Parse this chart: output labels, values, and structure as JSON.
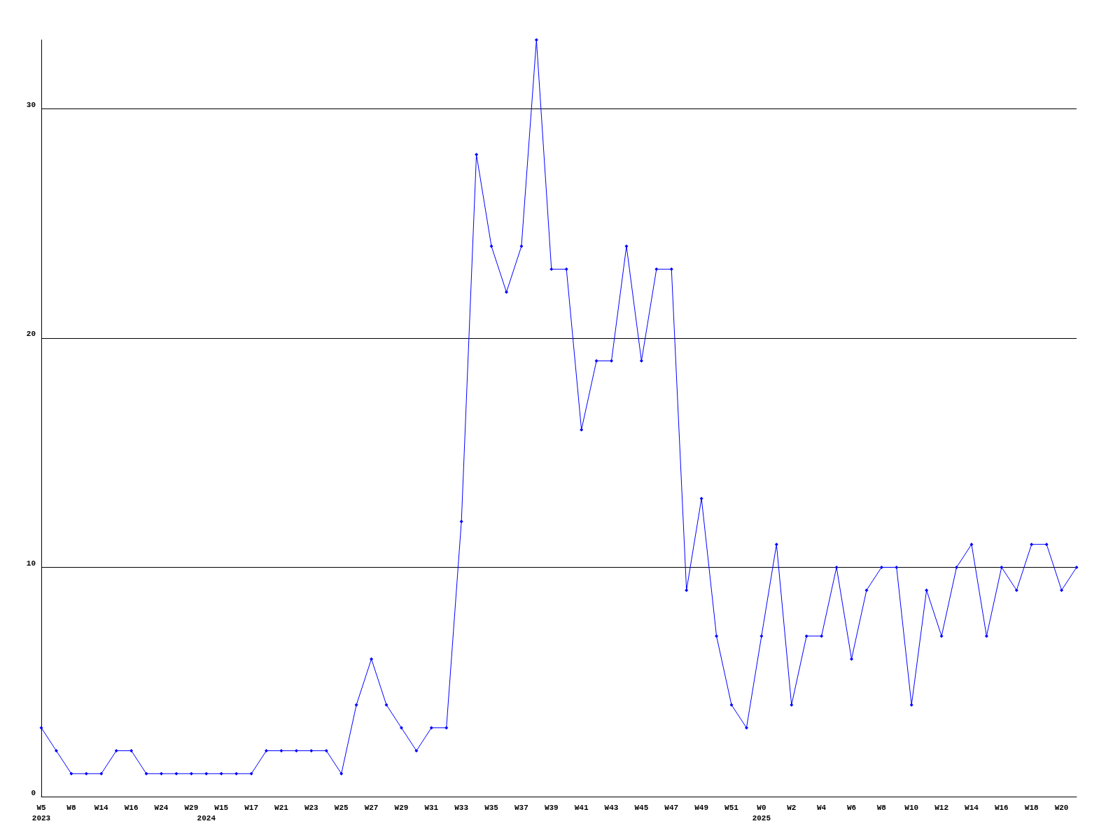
{
  "chart_data": {
    "type": "line",
    "categories": [
      "W5\n2023",
      null,
      "W8",
      null,
      "W14",
      null,
      "W16",
      null,
      "W24",
      null,
      "W29",
      "\n2024",
      "W15",
      null,
      "W17",
      null,
      "W21",
      null,
      "W23",
      null,
      "W25",
      null,
      "W27",
      null,
      "W29",
      null,
      "W31",
      null,
      "W33",
      null,
      "W35",
      null,
      "W37",
      null,
      "W39",
      null,
      "W41",
      null,
      "W43",
      null,
      "W45",
      null,
      "W47",
      null,
      "W49",
      null,
      "W51",
      null,
      "W0\n2025",
      null,
      "W2",
      null,
      "W4",
      null,
      "W6",
      null,
      "W8",
      null,
      "W10",
      null,
      "W12",
      null,
      "W14",
      null,
      "W16",
      null,
      "W18",
      null,
      "W20",
      null
    ],
    "series": [
      {
        "color": "#0000ff",
        "values": [
          3,
          2,
          1,
          1,
          1,
          2,
          2,
          1,
          1,
          1,
          1,
          1,
          1,
          1,
          1,
          2,
          2,
          2,
          2,
          2,
          1,
          4,
          6,
          4,
          3,
          2,
          3,
          3,
          12,
          28,
          24,
          22,
          24,
          33,
          23,
          23,
          16,
          19,
          19,
          24,
          19,
          23,
          23,
          9,
          13,
          7,
          4,
          3,
          7,
          11,
          4,
          7,
          7,
          10,
          6,
          9,
          10,
          10,
          4,
          9,
          7,
          10,
          11,
          7,
          10,
          9,
          11,
          11,
          9,
          10
        ]
      }
    ],
    "ylim": [
      0,
      33
    ],
    "yticks": [
      0,
      10,
      20,
      30
    ],
    "grid": "y",
    "marker": "diamond",
    "line_style": "solid"
  }
}
